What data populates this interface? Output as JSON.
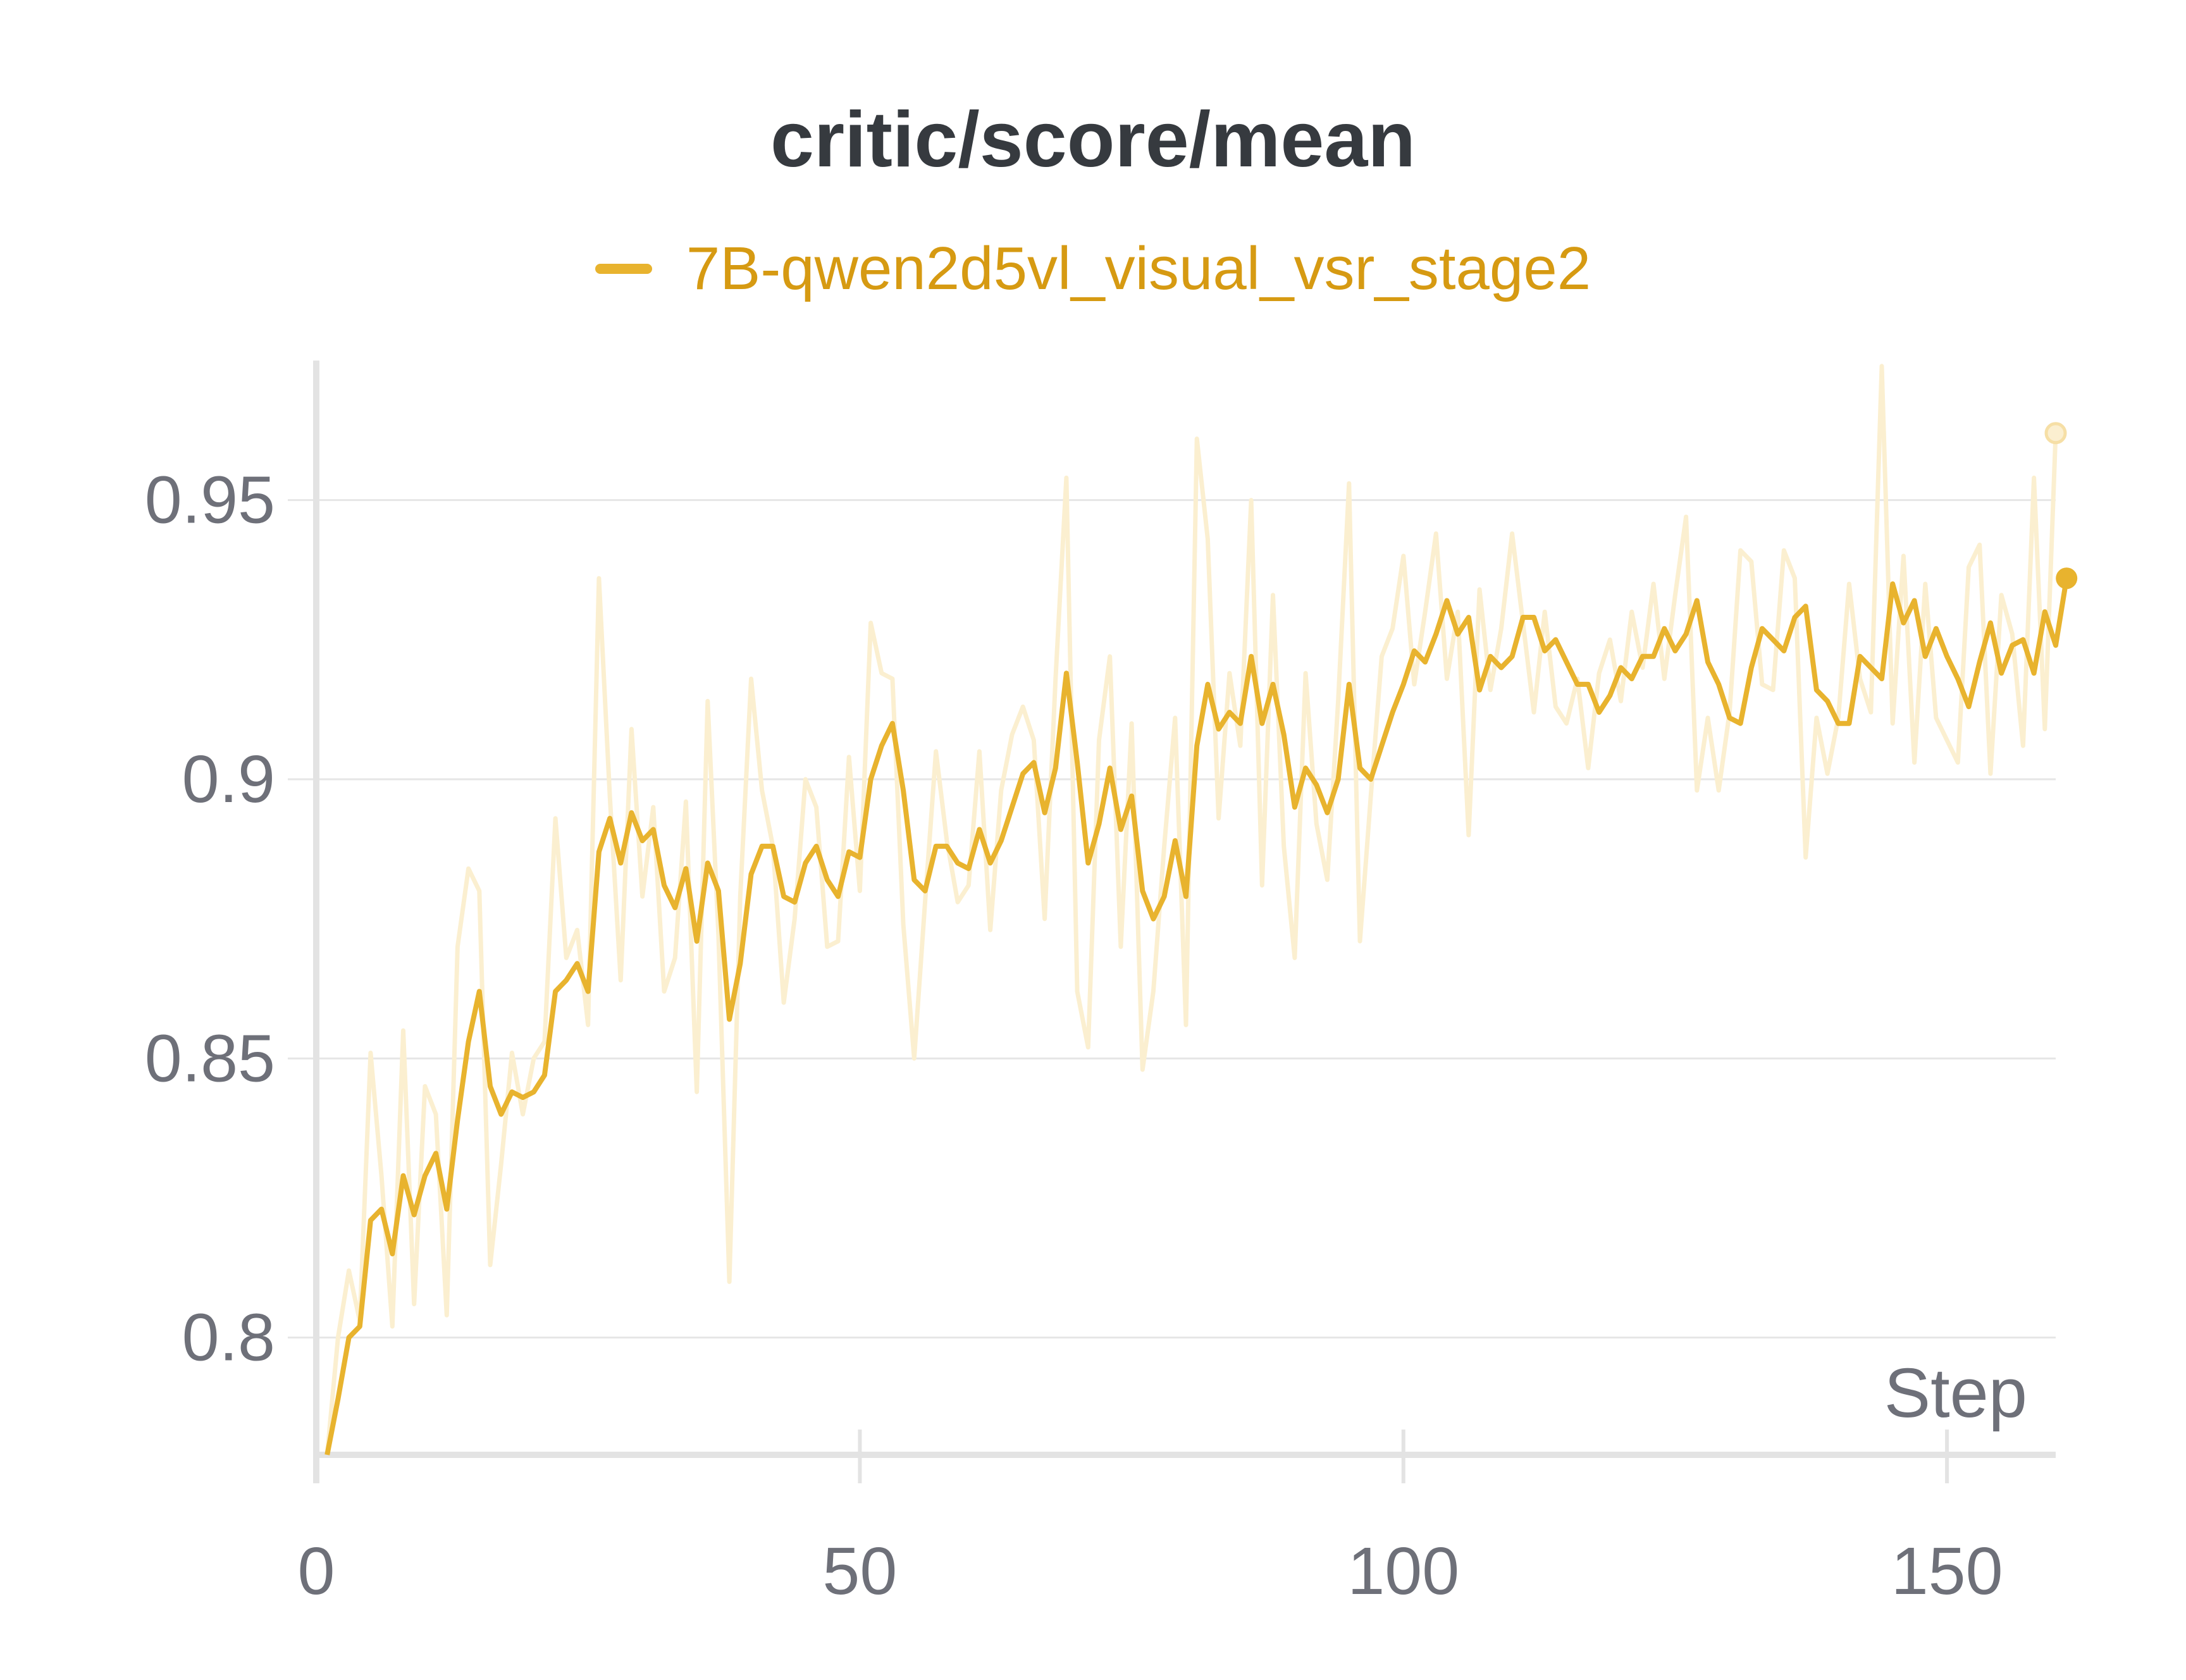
{
  "chart_data": {
    "type": "line",
    "title": "critic/score/mean",
    "xlabel": "Step",
    "ylabel": "",
    "xlim": [
      0,
      160
    ],
    "ylim": [
      0.779,
      0.975
    ],
    "x_ticks": [
      "0",
      "50",
      "100",
      "150"
    ],
    "y_ticks": [
      "0.8",
      "0.85",
      "0.9",
      "0.95"
    ],
    "grid": true,
    "legend_position": "top-center",
    "colors": {
      "smoothed": "#e8b32e",
      "raw": "#fbefd0",
      "grid": "#e6e6e6",
      "axis": "#e3e3e3"
    },
    "series": [
      {
        "name": "7B-qwen2d5vl_visual_vsr_stage2",
        "smoothed": [
          [
            1,
            0.779
          ],
          [
            2,
            0.789
          ],
          [
            3,
            0.8
          ],
          [
            4,
            0.802
          ],
          [
            5,
            0.821
          ],
          [
            6,
            0.823
          ],
          [
            7,
            0.815
          ],
          [
            8,
            0.829
          ],
          [
            9,
            0.822
          ],
          [
            10,
            0.829
          ],
          [
            11,
            0.833
          ],
          [
            12,
            0.823
          ],
          [
            13,
            0.839
          ],
          [
            14,
            0.853
          ],
          [
            15,
            0.862
          ],
          [
            16,
            0.845
          ],
          [
            17,
            0.84
          ],
          [
            18,
            0.844
          ],
          [
            19,
            0.843
          ],
          [
            20,
            0.844
          ],
          [
            21,
            0.847
          ],
          [
            22,
            0.862
          ],
          [
            23,
            0.864
          ],
          [
            24,
            0.867
          ],
          [
            25,
            0.862
          ],
          [
            26,
            0.887
          ],
          [
            27,
            0.893
          ],
          [
            28,
            0.885
          ],
          [
            29,
            0.894
          ],
          [
            30,
            0.889
          ],
          [
            31,
            0.891
          ],
          [
            32,
            0.881
          ],
          [
            33,
            0.877
          ],
          [
            34,
            0.884
          ],
          [
            35,
            0.871
          ],
          [
            36,
            0.885
          ],
          [
            37,
            0.88
          ],
          [
            38,
            0.857
          ],
          [
            39,
            0.867
          ],
          [
            40,
            0.883
          ],
          [
            41,
            0.888
          ],
          [
            42,
            0.888
          ],
          [
            43,
            0.879
          ],
          [
            44,
            0.878
          ],
          [
            45,
            0.885
          ],
          [
            46,
            0.888
          ],
          [
            47,
            0.882
          ],
          [
            48,
            0.879
          ],
          [
            49,
            0.887
          ],
          [
            50,
            0.886
          ],
          [
            51,
            0.9
          ],
          [
            52,
            0.906
          ],
          [
            53,
            0.91
          ],
          [
            54,
            0.898
          ],
          [
            55,
            0.882
          ],
          [
            56,
            0.88
          ],
          [
            57,
            0.888
          ],
          [
            58,
            0.888
          ],
          [
            59,
            0.885
          ],
          [
            60,
            0.884
          ],
          [
            61,
            0.891
          ],
          [
            62,
            0.885
          ],
          [
            63,
            0.889
          ],
          [
            64,
            0.895
          ],
          [
            65,
            0.901
          ],
          [
            66,
            0.903
          ],
          [
            67,
            0.894
          ],
          [
            68,
            0.902
          ],
          [
            69,
            0.919
          ],
          [
            70,
            0.903
          ],
          [
            71,
            0.885
          ],
          [
            72,
            0.892
          ],
          [
            73,
            0.902
          ],
          [
            74,
            0.891
          ],
          [
            75,
            0.897
          ],
          [
            76,
            0.88
          ],
          [
            77,
            0.875
          ],
          [
            78,
            0.879
          ],
          [
            79,
            0.889
          ],
          [
            80,
            0.879
          ],
          [
            81,
            0.906
          ],
          [
            82,
            0.917
          ],
          [
            83,
            0.909
          ],
          [
            84,
            0.912
          ],
          [
            85,
            0.91
          ],
          [
            86,
            0.922
          ],
          [
            87,
            0.91
          ],
          [
            88,
            0.917
          ],
          [
            89,
            0.908
          ],
          [
            90,
            0.895
          ],
          [
            91,
            0.902
          ],
          [
            92,
            0.899
          ],
          [
            93,
            0.894
          ],
          [
            94,
            0.9
          ],
          [
            95,
            0.917
          ],
          [
            96,
            0.902
          ],
          [
            97,
            0.9
          ],
          [
            98,
            0.906
          ],
          [
            99,
            0.912
          ],
          [
            100,
            0.917
          ],
          [
            101,
            0.923
          ],
          [
            102,
            0.921
          ],
          [
            103,
            0.926
          ],
          [
            104,
            0.932
          ],
          [
            105,
            0.926
          ],
          [
            106,
            0.929
          ],
          [
            107,
            0.916
          ],
          [
            108,
            0.922
          ],
          [
            109,
            0.92
          ],
          [
            110,
            0.922
          ],
          [
            111,
            0.929
          ],
          [
            112,
            0.929
          ],
          [
            113,
            0.923
          ],
          [
            114,
            0.925
          ],
          [
            115,
            0.921
          ],
          [
            116,
            0.917
          ],
          [
            117,
            0.917
          ],
          [
            118,
            0.912
          ],
          [
            119,
            0.915
          ],
          [
            120,
            0.92
          ],
          [
            121,
            0.918
          ],
          [
            122,
            0.922
          ],
          [
            123,
            0.922
          ],
          [
            124,
            0.927
          ],
          [
            125,
            0.923
          ],
          [
            126,
            0.926
          ],
          [
            127,
            0.932
          ],
          [
            128,
            0.921
          ],
          [
            129,
            0.917
          ],
          [
            130,
            0.911
          ],
          [
            131,
            0.91
          ],
          [
            132,
            0.92
          ],
          [
            133,
            0.927
          ],
          [
            134,
            0.925
          ],
          [
            135,
            0.923
          ],
          [
            136,
            0.929
          ],
          [
            137,
            0.931
          ],
          [
            138,
            0.916
          ],
          [
            139,
            0.914
          ],
          [
            140,
            0.91
          ],
          [
            141,
            0.91
          ],
          [
            142,
            0.922
          ],
          [
            143,
            0.92
          ],
          [
            144,
            0.918
          ],
          [
            145,
            0.935
          ],
          [
            146,
            0.928
          ],
          [
            147,
            0.932
          ],
          [
            148,
            0.922
          ],
          [
            149,
            0.927
          ],
          [
            150,
            0.922
          ],
          [
            151,
            0.918
          ],
          [
            152,
            0.913
          ],
          [
            153,
            0.921
          ],
          [
            154,
            0.928
          ],
          [
            155,
            0.919
          ],
          [
            156,
            0.924
          ],
          [
            157,
            0.925
          ],
          [
            158,
            0.919
          ],
          [
            159,
            0.93
          ],
          [
            160,
            0.924
          ],
          [
            161,
            0.936
          ]
        ],
        "raw": [
          [
            1,
            0.779
          ],
          [
            2,
            0.8
          ],
          [
            3,
            0.812
          ],
          [
            4,
            0.803
          ],
          [
            5,
            0.851
          ],
          [
            6,
            0.829
          ],
          [
            7,
            0.802
          ],
          [
            8,
            0.855
          ],
          [
            9,
            0.806
          ],
          [
            10,
            0.845
          ],
          [
            11,
            0.84
          ],
          [
            12,
            0.804
          ],
          [
            13,
            0.87
          ],
          [
            14,
            0.884
          ],
          [
            15,
            0.88
          ],
          [
            16,
            0.813
          ],
          [
            17,
            0.831
          ],
          [
            18,
            0.851
          ],
          [
            19,
            0.84
          ],
          [
            20,
            0.85
          ],
          [
            21,
            0.853
          ],
          [
            22,
            0.893
          ],
          [
            23,
            0.868
          ],
          [
            24,
            0.873
          ],
          [
            25,
            0.856
          ],
          [
            26,
            0.936
          ],
          [
            27,
            0.897
          ],
          [
            28,
            0.864
          ],
          [
            29,
            0.909
          ],
          [
            30,
            0.879
          ],
          [
            31,
            0.895
          ],
          [
            32,
            0.862
          ],
          [
            33,
            0.868
          ],
          [
            34,
            0.896
          ],
          [
            35,
            0.844
          ],
          [
            36,
            0.914
          ],
          [
            37,
            0.872
          ],
          [
            38,
            0.81
          ],
          [
            39,
            0.879
          ],
          [
            40,
            0.918
          ],
          [
            41,
            0.898
          ],
          [
            42,
            0.888
          ],
          [
            43,
            0.86
          ],
          [
            44,
            0.875
          ],
          [
            45,
            0.9
          ],
          [
            46,
            0.895
          ],
          [
            47,
            0.87
          ],
          [
            48,
            0.871
          ],
          [
            49,
            0.904
          ],
          [
            50,
            0.88
          ],
          [
            51,
            0.928
          ],
          [
            52,
            0.919
          ],
          [
            53,
            0.918
          ],
          [
            54,
            0.874
          ],
          [
            55,
            0.85
          ],
          [
            56,
            0.878
          ],
          [
            57,
            0.905
          ],
          [
            58,
            0.889
          ],
          [
            59,
            0.878
          ],
          [
            60,
            0.881
          ],
          [
            61,
            0.905
          ],
          [
            62,
            0.873
          ],
          [
            63,
            0.898
          ],
          [
            64,
            0.908
          ],
          [
            65,
            0.913
          ],
          [
            66,
            0.907
          ],
          [
            67,
            0.875
          ],
          [
            68,
            0.918
          ],
          [
            69,
            0.954
          ],
          [
            70,
            0.862
          ],
          [
            71,
            0.852
          ],
          [
            72,
            0.907
          ],
          [
            73,
            0.922
          ],
          [
            74,
            0.87
          ],
          [
            75,
            0.91
          ],
          [
            76,
            0.848
          ],
          [
            77,
            0.862
          ],
          [
            78,
            0.888
          ],
          [
            79,
            0.911
          ],
          [
            80,
            0.856
          ],
          [
            81,
            0.961
          ],
          [
            82,
            0.943
          ],
          [
            83,
            0.893
          ],
          [
            84,
            0.919
          ],
          [
            85,
            0.906
          ],
          [
            86,
            0.95
          ],
          [
            87,
            0.881
          ],
          [
            88,
            0.933
          ],
          [
            89,
            0.888
          ],
          [
            90,
            0.868
          ],
          [
            91,
            0.919
          ],
          [
            92,
            0.892
          ],
          [
            93,
            0.882
          ],
          [
            94,
            0.914
          ],
          [
            95,
            0.953
          ],
          [
            96,
            0.871
          ],
          [
            97,
            0.897
          ],
          [
            98,
            0.922
          ],
          [
            99,
            0.927
          ],
          [
            100,
            0.94
          ],
          [
            101,
            0.917
          ],
          [
            102,
            0.93
          ],
          [
            103,
            0.944
          ],
          [
            104,
            0.918
          ],
          [
            105,
            0.93
          ],
          [
            106,
            0.89
          ],
          [
            107,
            0.934
          ],
          [
            108,
            0.916
          ],
          [
            109,
            0.927
          ],
          [
            110,
            0.944
          ],
          [
            111,
            0.928
          ],
          [
            112,
            0.912
          ],
          [
            113,
            0.93
          ],
          [
            114,
            0.913
          ],
          [
            115,
            0.91
          ],
          [
            116,
            0.918
          ],
          [
            117,
            0.902
          ],
          [
            118,
            0.919
          ],
          [
            119,
            0.925
          ],
          [
            120,
            0.914
          ],
          [
            121,
            0.93
          ],
          [
            122,
            0.92
          ],
          [
            123,
            0.935
          ],
          [
            124,
            0.918
          ],
          [
            125,
            0.933
          ],
          [
            126,
            0.947
          ],
          [
            127,
            0.898
          ],
          [
            128,
            0.911
          ],
          [
            129,
            0.898
          ],
          [
            130,
            0.912
          ],
          [
            131,
            0.941
          ],
          [
            132,
            0.939
          ],
          [
            133,
            0.917
          ],
          [
            134,
            0.916
          ],
          [
            135,
            0.941
          ],
          [
            136,
            0.936
          ],
          [
            137,
            0.886
          ],
          [
            138,
            0.911
          ],
          [
            139,
            0.901
          ],
          [
            140,
            0.911
          ],
          [
            141,
            0.935
          ],
          [
            142,
            0.918
          ],
          [
            143,
            0.912
          ],
          [
            144,
            0.974
          ],
          [
            145,
            0.91
          ],
          [
            146,
            0.94
          ],
          [
            147,
            0.903
          ],
          [
            148,
            0.935
          ],
          [
            149,
            0.911
          ],
          [
            150,
            0.907
          ],
          [
            151,
            0.903
          ],
          [
            152,
            0.938
          ],
          [
            153,
            0.942
          ],
          [
            154,
            0.901
          ],
          [
            155,
            0.933
          ],
          [
            156,
            0.926
          ],
          [
            157,
            0.906
          ],
          [
            158,
            0.954
          ],
          [
            159,
            0.909
          ],
          [
            160,
            0.962
          ]
        ]
      }
    ]
  }
}
